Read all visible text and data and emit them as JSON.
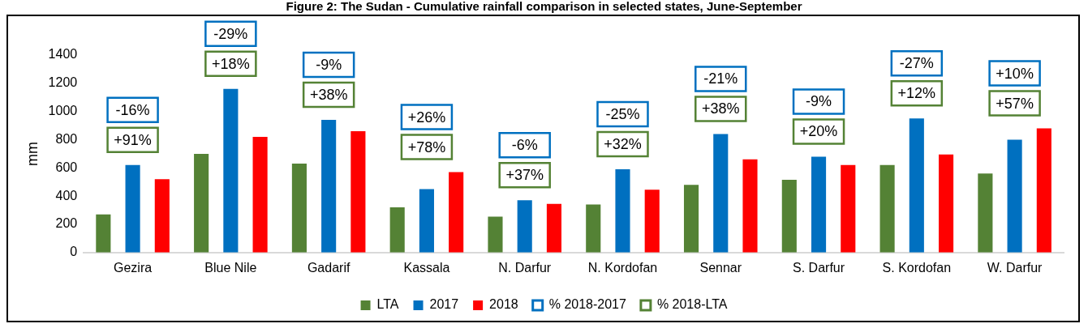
{
  "chart_data": {
    "type": "bar",
    "title": "Figure 2: The Sudan - Cumulative rainfall comparison in selected states, June-September",
    "ylabel": "mm",
    "categories": [
      "Gezira",
      "Blue Nile",
      "Gadarif",
      "Kassala",
      "N. Darfur",
      "N. Kordofan",
      "Sennar",
      "S. Darfur",
      "S. Kordofan",
      "W. Darfur"
    ],
    "series": [
      {
        "name": "LTA",
        "color": "#548235",
        "values": [
          270,
          700,
          630,
          320,
          255,
          340,
          480,
          515,
          620,
          560
        ]
      },
      {
        "name": "2017",
        "color": "#0070c0",
        "values": [
          620,
          1160,
          940,
          450,
          370,
          590,
          840,
          680,
          950,
          800
        ]
      },
      {
        "name": "2018",
        "color": "#ff0000",
        "values": [
          520,
          820,
          860,
          570,
          345,
          445,
          660,
          620,
          695,
          880
        ]
      },
      {
        "name": "% 2018-2017",
        "type": "scatter",
        "color": "#0070c0",
        "values": [
          null,
          null,
          null,
          null,
          null,
          null,
          null,
          null,
          null,
          null
        ],
        "value_labels": [
          "-16%",
          "-29%",
          "-9%",
          "+26%",
          "-6%",
          "-25%",
          "-21%",
          "-9%",
          "-27%",
          "+10%"
        ]
      },
      {
        "name": "% 2018-LTA",
        "type": "scatter",
        "color": "#548235",
        "values": [
          null,
          null,
          null,
          null,
          null,
          null,
          null,
          null,
          null,
          null
        ],
        "value_labels": [
          "+91%",
          "+18%",
          "+38%",
          "+78%",
          "+37%",
          "+32%",
          "+38%",
          "+20%",
          "+12%",
          "+57%"
        ]
      }
    ],
    "ylim": [
      0,
      1400
    ],
    "yticks": [
      0,
      200,
      400,
      600,
      800,
      1000,
      1200,
      1400
    ],
    "grid": false,
    "legend": "bottom"
  }
}
